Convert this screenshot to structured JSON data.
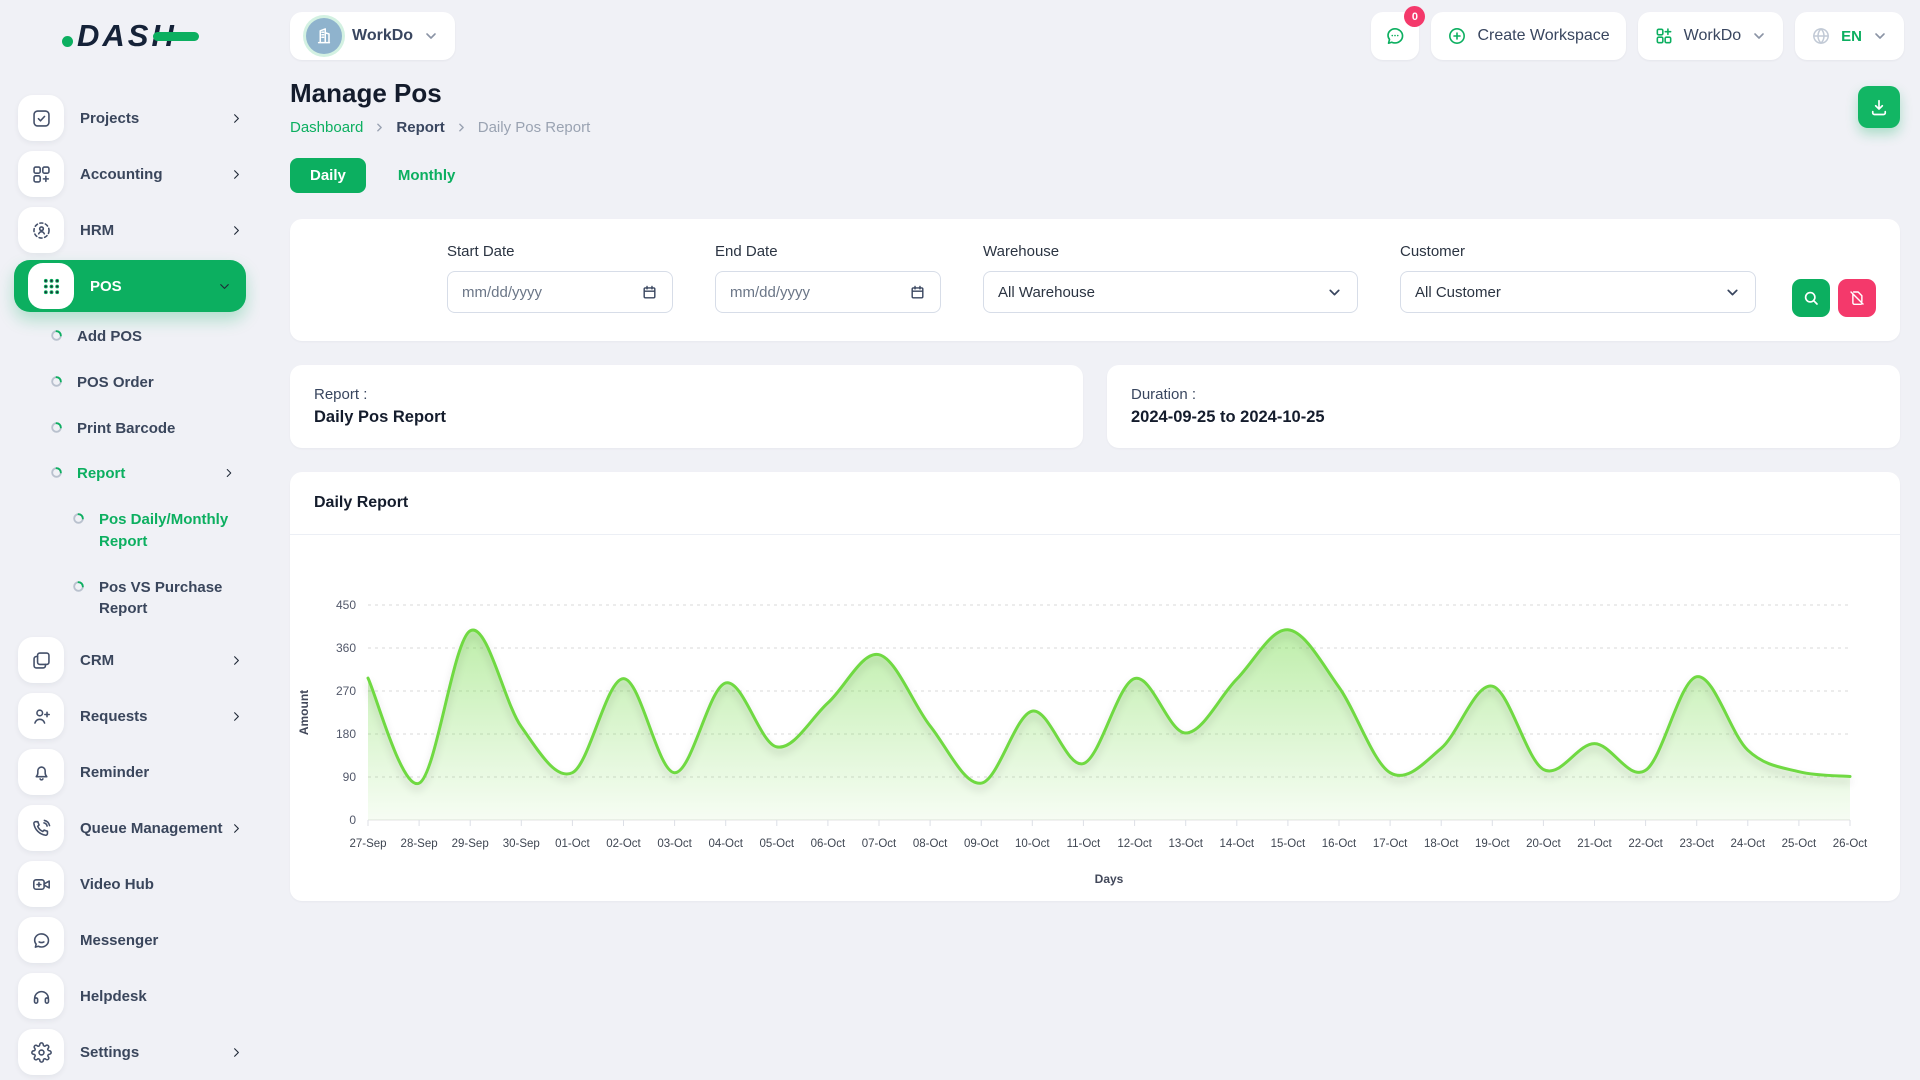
{
  "brand": {
    "logo_text": "DASH"
  },
  "topbar": {
    "workspace": {
      "name": "WorkDo"
    },
    "messages_badge": "0",
    "create_workspace_label": "Create Workspace",
    "workdo_menu_label": "WorkDo",
    "language": "EN"
  },
  "sidebar": {
    "items": [
      {
        "label": "Projects",
        "icon": "check-square",
        "chevron": "right"
      },
      {
        "label": "Accounting",
        "icon": "category-plus",
        "chevron": "right"
      },
      {
        "label": "HRM",
        "icon": "user-scan",
        "chevron": "right"
      },
      {
        "label": "POS",
        "icon": "dots-grid",
        "chevron": "down",
        "active": true,
        "children": [
          {
            "label": "Add POS"
          },
          {
            "label": "POS Order"
          },
          {
            "label": "Print Barcode"
          },
          {
            "label": "Report",
            "active": true,
            "chevron": "right",
            "children": [
              {
                "label": "Pos Daily/Monthly Report",
                "active": true
              },
              {
                "label": "Pos VS Purchase Report"
              }
            ]
          }
        ]
      },
      {
        "label": "CRM",
        "icon": "cards",
        "chevron": "right"
      },
      {
        "label": "Requests",
        "icon": "user-plus",
        "chevron": "right"
      },
      {
        "label": "Reminder",
        "icon": "bell"
      },
      {
        "label": "Queue Management",
        "icon": "phone-call",
        "chevron": "right"
      },
      {
        "label": "Video Hub",
        "icon": "video-plus"
      },
      {
        "label": "Messenger",
        "icon": "chat-bubble"
      },
      {
        "label": "Helpdesk",
        "icon": "headphones"
      },
      {
        "label": "Settings",
        "icon": "gear",
        "chevron": "right"
      }
    ]
  },
  "page": {
    "title": "Manage Pos",
    "breadcrumb": {
      "root": "Dashboard",
      "section": "Report",
      "current": "Daily Pos Report"
    },
    "tabs": {
      "daily": "Daily",
      "monthly": "Monthly"
    }
  },
  "filters": {
    "start_date": {
      "label": "Start Date",
      "placeholder": "mm/dd/yyyy"
    },
    "end_date": {
      "label": "End Date",
      "placeholder": "mm/dd/yyyy"
    },
    "warehouse": {
      "label": "Warehouse",
      "value": "All Warehouse"
    },
    "customer": {
      "label": "Customer",
      "value": "All Customer"
    }
  },
  "summary": {
    "report": {
      "label": "Report :",
      "value": "Daily Pos Report"
    },
    "duration": {
      "label": "Duration :",
      "value": "2024-09-25 to 2024-10-25"
    }
  },
  "chart_data": {
    "type": "area",
    "title": "Daily Report",
    "xlabel": "Days",
    "ylabel": "Amount",
    "ylim": [
      0,
      450
    ],
    "yticks": [
      0,
      90,
      180,
      270,
      360,
      450
    ],
    "grid": "dashed-horizontal",
    "legend": false,
    "line_color": "#6FD943",
    "categories": [
      "27-Sep",
      "28-Sep",
      "29-Sep",
      "30-Sep",
      "01-Oct",
      "02-Oct",
      "03-Oct",
      "04-Oct",
      "05-Oct",
      "06-Oct",
      "07-Oct",
      "08-Oct",
      "09-Oct",
      "10-Oct",
      "11-Oct",
      "12-Oct",
      "13-Oct",
      "14-Oct",
      "15-Oct",
      "16-Oct",
      "17-Oct",
      "18-Oct",
      "19-Oct",
      "20-Oct",
      "21-Oct",
      "22-Oct",
      "23-Oct",
      "24-Oct",
      "25-Oct",
      "26-Oct"
    ],
    "values": [
      297,
      77,
      396,
      195,
      99,
      296,
      99,
      287,
      153,
      245,
      346,
      197,
      77,
      228,
      118,
      296,
      182,
      295,
      398,
      278,
      99,
      150,
      280,
      106,
      160,
      104,
      300,
      146,
      101,
      91
    ]
  },
  "colors": {
    "primary_green": "#0CAF60",
    "chart_green": "#6FD943",
    "danger_pink": "#F4396B",
    "text_dark": "#141C2C",
    "muted": "#9AA3B2"
  }
}
